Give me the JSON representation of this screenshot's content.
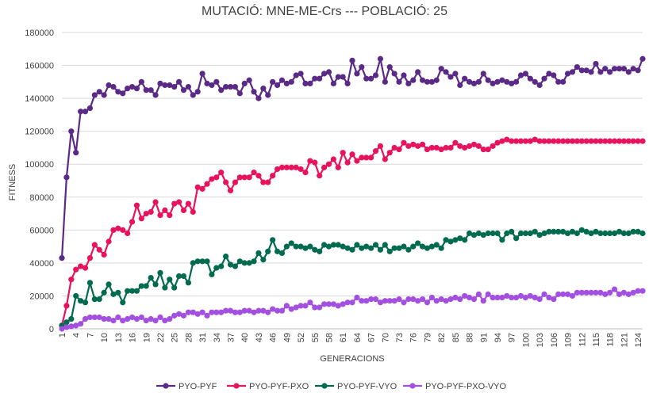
{
  "chart_data": {
    "type": "line",
    "title": "MUTACIÓ: MNE-ME-Crs  ---  POBLACIÓ: 25",
    "xlabel": "GENERACIONS",
    "ylabel": "FITNESS",
    "ylim": [
      0,
      180000
    ],
    "yticks": [
      "0",
      "20000",
      "40000",
      "60000",
      "80000",
      "100000",
      "120000",
      "140000",
      "160000",
      "180000"
    ],
    "xticks": [
      "1",
      "4",
      "7",
      "10",
      "13",
      "16",
      "19",
      "22",
      "25",
      "28",
      "31",
      "34",
      "37",
      "40",
      "43",
      "46",
      "49",
      "52",
      "55",
      "58",
      "61",
      "64",
      "67",
      "70",
      "73",
      "76",
      "79",
      "82",
      "85",
      "88",
      "91",
      "94",
      "97",
      "100",
      "103",
      "106",
      "109",
      "112",
      "115",
      "118",
      "121",
      "124"
    ],
    "x_start": 1,
    "x_end": 125,
    "grid": true,
    "legend_position": "bottom",
    "series": [
      {
        "name": "PYO-PYF",
        "color": "#5B2A86",
        "values": [
          43000,
          92000,
          120000,
          107000,
          132000,
          132000,
          134000,
          142000,
          144000,
          142000,
          148000,
          147000,
          144000,
          143000,
          146000,
          147000,
          146000,
          150000,
          145000,
          145000,
          142000,
          149000,
          148000,
          148000,
          147000,
          150000,
          145000,
          147000,
          142000,
          144000,
          155000,
          149000,
          148000,
          150000,
          145000,
          147000,
          147000,
          147000,
          143000,
          149000,
          151000,
          144000,
          140000,
          146000,
          142000,
          150000,
          148000,
          151000,
          149000,
          150000,
          154000,
          155000,
          149000,
          149000,
          152000,
          152000,
          155000,
          156000,
          149000,
          153000,
          153000,
          149000,
          163000,
          155000,
          159000,
          152000,
          152000,
          154000,
          164000,
          150000,
          159000,
          155000,
          150000,
          154000,
          149000,
          151000,
          156000,
          151000,
          150000,
          150000,
          151000,
          158000,
          156000,
          153000,
          155000,
          148000,
          152000,
          150000,
          149000,
          150000,
          155000,
          151000,
          149000,
          150000,
          151000,
          150000,
          149000,
          150000,
          154000,
          155000,
          152000,
          150000,
          148000,
          152000,
          155000,
          154000,
          150000,
          150000,
          155000,
          156000,
          159000,
          157000,
          157000,
          156000,
          161000,
          156000,
          158000,
          156000,
          158000,
          158000,
          158000,
          156000,
          158000,
          157000,
          164000
        ]
      },
      {
        "name": "PYO-PYF-PXO",
        "color": "#E8135D",
        "values": [
          2000,
          14000,
          30000,
          36000,
          38000,
          37000,
          43000,
          51000,
          48000,
          45000,
          53000,
          60000,
          61000,
          60000,
          58000,
          65000,
          75000,
          67000,
          70000,
          71000,
          77000,
          69000,
          72000,
          69000,
          76000,
          77000,
          72000,
          76000,
          71000,
          86000,
          85000,
          88000,
          91000,
          92000,
          95000,
          89000,
          84000,
          89000,
          92000,
          92000,
          92000,
          95000,
          93000,
          89000,
          89000,
          93000,
          97000,
          98000,
          98000,
          98000,
          98000,
          97000,
          95000,
          102000,
          101000,
          93000,
          98000,
          100000,
          103000,
          98000,
          107000,
          101000,
          106000,
          102000,
          104000,
          104000,
          104000,
          108000,
          111000,
          103000,
          107000,
          110000,
          109000,
          113000,
          111000,
          112000,
          111000,
          112000,
          109000,
          110000,
          110000,
          109000,
          110000,
          110000,
          113000,
          111000,
          110000,
          111000,
          112000,
          111000,
          109000,
          109000,
          111000,
          113000,
          114000,
          115000,
          114000,
          114000,
          114000,
          114000,
          114000,
          115000,
          114000,
          114000,
          114000,
          114000,
          114000,
          114000,
          114000,
          114000,
          114000,
          114000,
          114000,
          114000,
          114000,
          114000,
          114000,
          114000,
          114000,
          114000,
          114000,
          114000,
          114000,
          114000,
          114000
        ]
      },
      {
        "name": "PYO-PYF-VYO",
        "color": "#006B4F",
        "values": [
          2000,
          4000,
          6000,
          20000,
          17000,
          16000,
          28000,
          18000,
          18000,
          22000,
          27000,
          21000,
          22000,
          16000,
          23000,
          23000,
          23000,
          26000,
          26000,
          31000,
          27000,
          34000,
          25000,
          30000,
          25000,
          32000,
          32000,
          28000,
          40000,
          41000,
          41000,
          41000,
          33000,
          37000,
          38000,
          44000,
          39000,
          38000,
          41000,
          40000,
          40000,
          41000,
          46000,
          42000,
          47000,
          54000,
          47000,
          46000,
          50000,
          52000,
          50000,
          50000,
          49000,
          50000,
          48000,
          47000,
          51000,
          50000,
          51000,
          51000,
          50000,
          49000,
          48000,
          51000,
          49000,
          50000,
          49000,
          51000,
          48000,
          51000,
          47000,
          49000,
          49000,
          50000,
          48000,
          50000,
          52000,
          50000,
          49000,
          50000,
          51000,
          49000,
          54000,
          53000,
          54000,
          55000,
          54000,
          58000,
          57000,
          58000,
          57000,
          58000,
          58000,
          58000,
          54000,
          58000,
          59000,
          55000,
          58000,
          58000,
          58000,
          59000,
          57000,
          58000,
          59000,
          59000,
          59000,
          59000,
          58000,
          59000,
          58000,
          60000,
          59000,
          58000,
          59000,
          58000,
          58000,
          58000,
          58000,
          59000,
          58000,
          58000,
          59000,
          59000,
          58000
        ]
      },
      {
        "name": "PYO-PYF-PXO-VYO",
        "color": "#A34FE0",
        "values": [
          0,
          1000,
          1500,
          2000,
          3000,
          6000,
          7000,
          7000,
          7000,
          6000,
          6000,
          5000,
          7000,
          5000,
          6000,
          7000,
          6000,
          7000,
          5000,
          6000,
          5000,
          7000,
          5000,
          6000,
          8000,
          9000,
          8000,
          10000,
          10000,
          9000,
          10000,
          8000,
          10000,
          10000,
          10000,
          11000,
          11000,
          10000,
          10000,
          11000,
          11000,
          10000,
          11000,
          11000,
          10000,
          12000,
          11000,
          11000,
          14000,
          12000,
          13000,
          14000,
          14000,
          16000,
          13000,
          13000,
          15000,
          15000,
          15000,
          14000,
          15000,
          16000,
          16000,
          19000,
          17000,
          17000,
          18000,
          18000,
          16000,
          17000,
          17000,
          17000,
          18000,
          16000,
          18000,
          18000,
          17000,
          18000,
          16000,
          19000,
          17000,
          18000,
          17000,
          18000,
          19000,
          18000,
          20000,
          19000,
          18000,
          21000,
          17000,
          21000,
          19000,
          19000,
          19000,
          20000,
          19000,
          19000,
          20000,
          19000,
          20000,
          19000,
          18000,
          21000,
          19000,
          18000,
          21000,
          21000,
          21000,
          20000,
          22000,
          22000,
          22000,
          22000,
          22000,
          22000,
          21000,
          22000,
          24000,
          21000,
          22000,
          21000,
          22000,
          23000,
          23000
        ]
      }
    ]
  }
}
